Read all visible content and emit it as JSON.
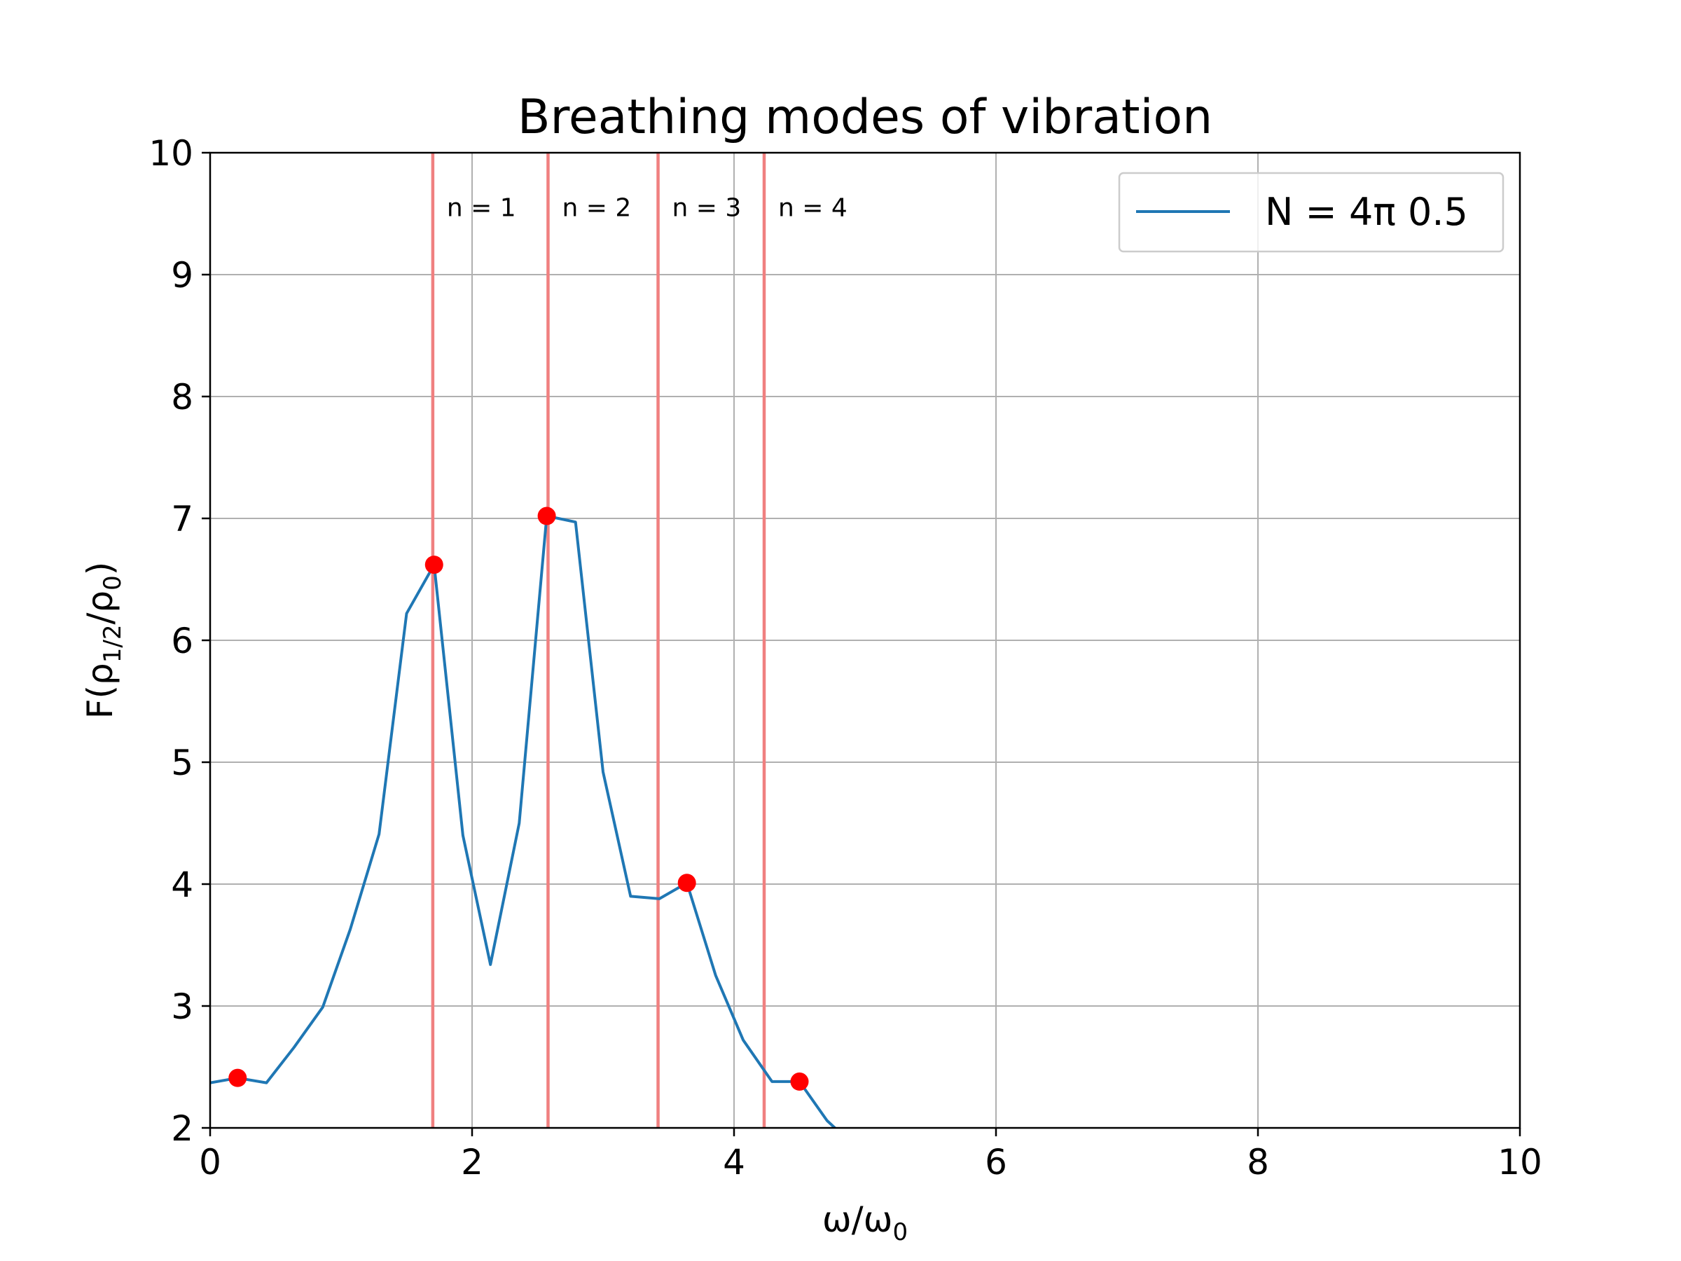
{
  "chart_data": {
    "type": "line",
    "title": "Breathing modes of vibration",
    "xlabel_main": "ω/ω",
    "xlabel_sub": "0",
    "ylabel_parts": [
      "F(ρ",
      "1/2",
      "/ρ",
      "0",
      ")"
    ],
    "xlim": [
      0,
      10
    ],
    "ylim": [
      2,
      10
    ],
    "x_ticks": [
      0,
      2,
      4,
      6,
      8,
      10
    ],
    "x_tick_labels": [
      "0",
      "2",
      "4",
      "6",
      "8",
      "10"
    ],
    "y_ticks": [
      2,
      3,
      4,
      5,
      6,
      7,
      8,
      9,
      10
    ],
    "y_tick_labels": [
      "2",
      "3",
      "4",
      "5",
      "6",
      "7",
      "8",
      "9",
      "10"
    ],
    "grid": true,
    "legend_position": "top-right",
    "series": [
      {
        "name": "N = 4π 0.5",
        "color": "#1f77b4",
        "x": [
          0.0,
          0.21,
          0.43,
          0.64,
          0.86,
          1.07,
          1.29,
          1.5,
          1.71,
          1.93,
          2.14,
          2.36,
          2.57,
          2.79,
          3.0,
          3.21,
          3.43,
          3.64,
          3.86,
          4.07,
          4.29,
          4.5,
          4.71,
          4.8
        ],
        "y": [
          2.37,
          2.41,
          2.37,
          2.66,
          2.99,
          3.63,
          4.41,
          6.22,
          6.62,
          4.4,
          3.34,
          4.5,
          7.02,
          6.97,
          4.92,
          3.9,
          3.88,
          4.01,
          3.25,
          2.72,
          2.38,
          2.38,
          2.06,
          1.97
        ]
      }
    ],
    "markers": {
      "color": "#ff0000",
      "x": [
        0.21,
        1.71,
        2.57,
        3.64,
        4.5
      ],
      "y": [
        2.41,
        6.62,
        7.02,
        4.01,
        2.38
      ]
    },
    "vertical_lines": {
      "color": "#f08080",
      "x": [
        1.7,
        2.58,
        3.42,
        4.23
      ],
      "labels": [
        "n = 1",
        "n = 2",
        "n = 3",
        "n = 4"
      ],
      "label_y": 9.55
    }
  }
}
